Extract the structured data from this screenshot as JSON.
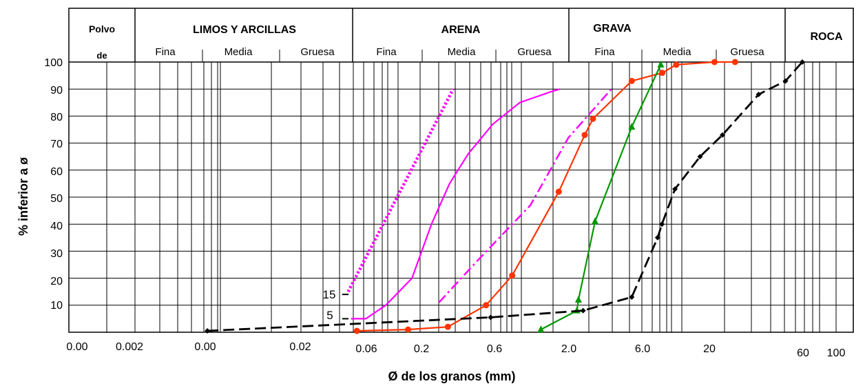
{
  "chart_data": {
    "type": "line",
    "xlabel": "Ø de los granos (mm)",
    "ylabel": "% inferior a ø",
    "ylim": [
      0,
      100
    ],
    "y_ticks": [
      "10",
      "20",
      "30",
      "40",
      "50",
      "60",
      "70",
      "80",
      "90",
      "100"
    ],
    "x_tick_labels": [
      "0.00",
      "0.002",
      "0.00",
      "0.02",
      "0.06",
      "0.2",
      "0.6",
      "2.0",
      "6.0",
      "20",
      "60",
      "100"
    ],
    "grid": true,
    "categories": {
      "top": [
        "Polvo",
        "LIMOS Y ARCILLAS",
        "ARENA",
        "GRAVA",
        "ROCA"
      ],
      "polvo_sub": "de",
      "sub": [
        "Fina",
        "Media",
        "Gruesa",
        "Fina",
        "Media",
        "Gruesa",
        "Fina",
        "Media",
        "Gruesa"
      ]
    },
    "annotations": [
      "15",
      "5"
    ],
    "series": [
      {
        "color": "#ff00ff",
        "style": "dotted",
        "x": [
          0.0524,
          0.2278
        ],
        "y": [
          15,
          90
        ]
      },
      {
        "color": "#ff00ff",
        "style": "solid",
        "x": [
          0.0544,
          0.0657,
          0.0848,
          0.1222,
          0.164,
          0.2155,
          0.2857,
          0.4145,
          0.6239,
          1.0,
          1.1856
        ],
        "y": [
          5,
          5,
          10,
          20,
          40,
          55,
          66,
          77,
          85,
          89,
          90
        ]
      },
      {
        "color": "#ff00ff",
        "style": "dash-dot",
        "x": [
          0.1835,
          0.3225,
          0.7326,
          1.3845,
          3.0888
        ],
        "y": [
          11,
          26,
          47,
          72,
          90
        ]
      },
      {
        "color": "#ff3300",
        "style": "solid",
        "marker": "circle",
        "x": [
          0.0586,
          0.1151,
          0.2102,
          0.3744,
          0.5562,
          1.1562,
          1.8786,
          2.1904,
          4.5227,
          8.0,
          10.3112,
          18.8125,
          25.9922
        ],
        "y": [
          0.5,
          1,
          2,
          10,
          21,
          52,
          73,
          79,
          93,
          96,
          99,
          100,
          100
        ]
      },
      {
        "color": "#009900",
        "style": "solid",
        "marker": "triangle",
        "x": [
          0.8584,
          1.6234,
          1.6711,
          2.2773,
          4.5227,
          7.7734
        ],
        "y": [
          1,
          8,
          12,
          41,
          76,
          99
        ]
      },
      {
        "color": "#000000",
        "style": "dashed",
        "marker": "diamond",
        "x": [
          0.0087,
          0.4015,
          1.8234,
          4.5227,
          7.3304,
          7.9445,
          10.1155,
          15.0,
          21.3125,
          37.5781,
          57.3613,
          74.6347
        ],
        "y": [
          0.5,
          5.5,
          8,
          13,
          35,
          40,
          53,
          65,
          73,
          88,
          93,
          100
        ]
      }
    ]
  }
}
